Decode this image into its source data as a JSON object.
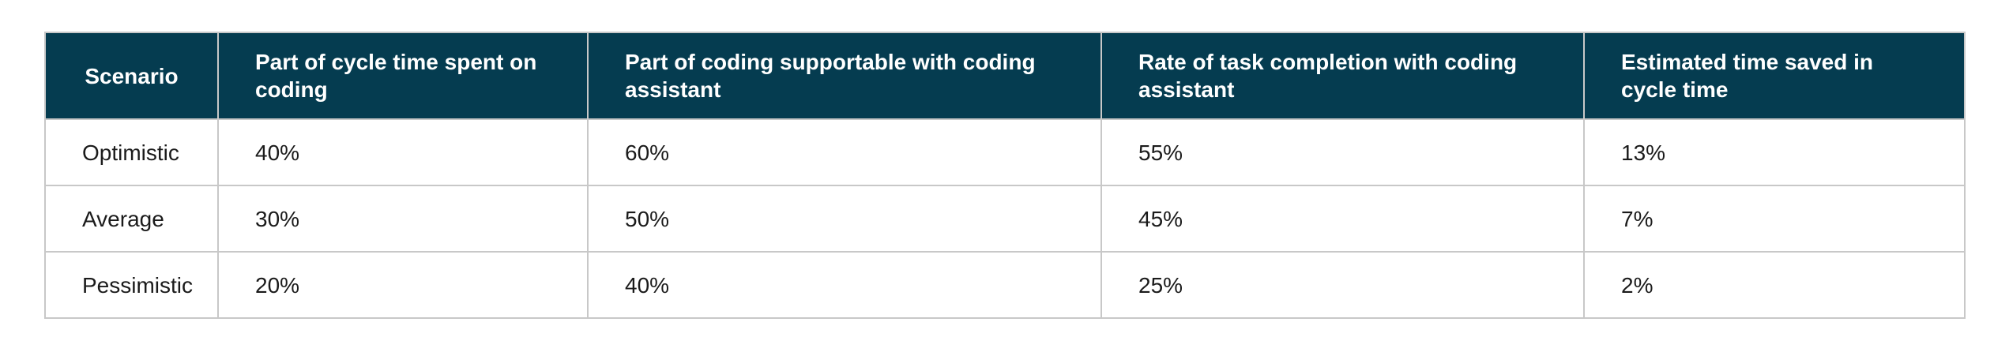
{
  "table": {
    "headers": [
      "Scenario",
      "Part of cycle time spent on coding",
      "Part of coding supportable with coding assistant",
      "Rate of task completion with coding assistant",
      "Estimated time saved in cycle time"
    ],
    "rows": [
      [
        "Optimistic",
        "40%",
        "60%",
        "55%",
        "13%"
      ],
      [
        "Average",
        "30%",
        "50%",
        "45%",
        "7%"
      ],
      [
        "Pessimistic",
        "20%",
        "40%",
        "25%",
        "2%"
      ]
    ]
  },
  "colors": {
    "header_background": "#053c50",
    "header_text": "#ffffff",
    "border": "#c8c8c8",
    "cell_text": "#1b1b1b"
  }
}
